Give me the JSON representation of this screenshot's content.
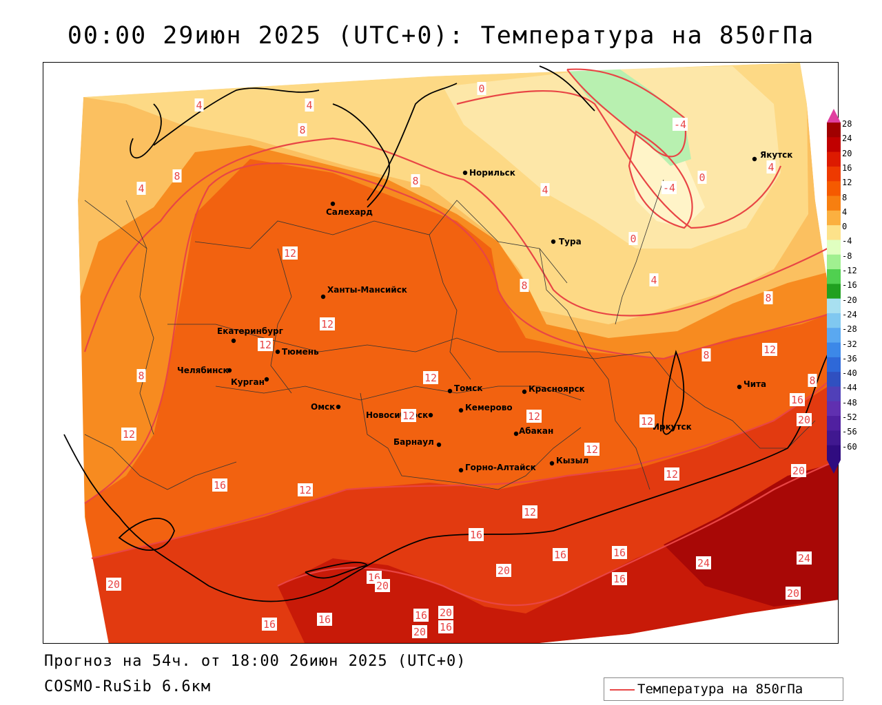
{
  "title": "00:00 29июн 2025 (UTC+0): Температура на 850гПа",
  "footer": {
    "forecast": "Прогноз на 54ч. от 18:00 26июн 2025 (UTC+0)",
    "model": "COSMO-RuSib 6.6км"
  },
  "legend": {
    "label": "Температура на 850гПа",
    "line_color": "#e84545"
  },
  "colorbar": {
    "labels": [
      "28",
      "24",
      "20",
      "16",
      "12",
      "8",
      "4",
      "0",
      "-4",
      "-8",
      "-12",
      "-16",
      "-20",
      "-24",
      "-28",
      "-32",
      "-36",
      "-40",
      "-44",
      "-48",
      "-52",
      "-56",
      "-60"
    ],
    "colors": [
      "#a00000",
      "#c00000",
      "#dd1a00",
      "#ee3a00",
      "#f55a00",
      "#f77f10",
      "#fbb040",
      "#fde28a",
      "#e0ffc0",
      "#a0f090",
      "#50d050",
      "#20a020",
      "#a8e0f0",
      "#80c8f0",
      "#5aa8f0",
      "#3c88e8",
      "#2e68d8",
      "#3050c0",
      "#5040b8",
      "#6030b0",
      "#5020a0",
      "#401890",
      "#300c80"
    ],
    "top_color": "#e040a0"
  },
  "cities": [
    {
      "name": "Салехард"
    },
    {
      "name": "Норильск"
    },
    {
      "name": "Якутск"
    },
    {
      "name": "Тура"
    },
    {
      "name": "Ханты-Мансийск"
    },
    {
      "name": "Екатеринбург"
    },
    {
      "name": "Тюмень"
    },
    {
      "name": "Челябинск"
    },
    {
      "name": "Курган"
    },
    {
      "name": "Омск"
    },
    {
      "name": "Новосибирск"
    },
    {
      "name": "Томск"
    },
    {
      "name": "Кемерово"
    },
    {
      "name": "Красноярск"
    },
    {
      "name": "Абакан"
    },
    {
      "name": "Барнаул"
    },
    {
      "name": "Горно-Алтайск"
    },
    {
      "name": "Кызыл"
    },
    {
      "name": "Иркутск"
    },
    {
      "name": "Чита"
    }
  ],
  "contour_labels": [
    "0",
    "4",
    "4",
    "8",
    "4",
    "8",
    "8",
    "4",
    "-4",
    "-4",
    "0",
    "4",
    "0",
    "4",
    "8",
    "12",
    "12",
    "12",
    "8",
    "12",
    "8",
    "8",
    "12",
    "12",
    "12",
    "12",
    "12",
    "16",
    "20",
    "12",
    "8",
    "12",
    "16",
    "12",
    "12",
    "16",
    "16",
    "16",
    "20",
    "24",
    "16",
    "20",
    "20",
    "16",
    "16",
    "20",
    "20",
    "16",
    "16",
    "20",
    "16",
    "24",
    "20"
  ]
}
